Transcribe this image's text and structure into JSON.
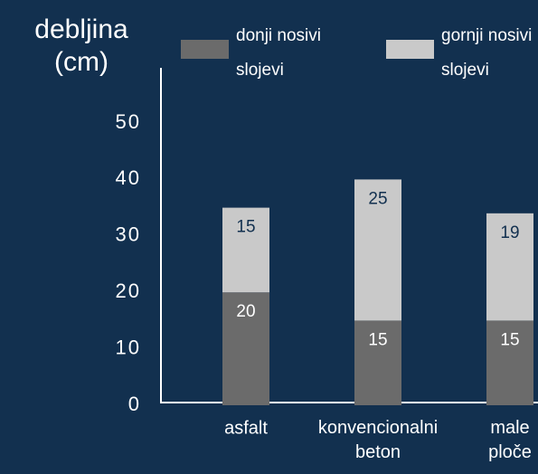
{
  "chart_data": {
    "type": "bar",
    "stacked": true,
    "y_axis_label": "debljina\n(cm)",
    "categories": [
      "asfalt",
      "konvencionalni\nbeton",
      "male\nploče"
    ],
    "series": [
      {
        "name": "donji nosivi\nslojevi",
        "color": "#6b6b6b",
        "label_color": "#ffffff",
        "values": [
          20,
          15,
          15
        ]
      },
      {
        "name": "gornji nosivi\nslojevi",
        "color": "#c9c9c9",
        "label_color": "#12304f",
        "values": [
          15,
          25,
          19
        ]
      }
    ],
    "ylim": [
      0,
      50
    ],
    "yticks": [
      0,
      10,
      20,
      30,
      40,
      50
    ],
    "grid": false
  }
}
